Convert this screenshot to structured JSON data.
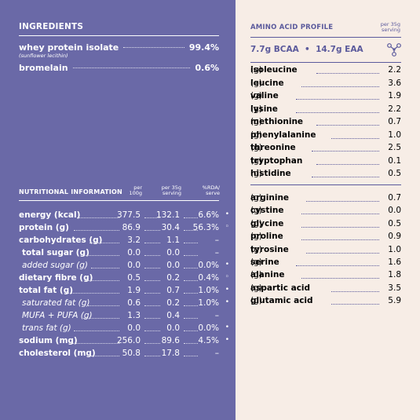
{
  "ingredients": {
    "title": "INGREDIENTS",
    "items": [
      {
        "name": "whey protein isolate",
        "value": "99.4%",
        "sub": "(sunflower lecithin)"
      },
      {
        "name": "bromelain",
        "value": "0.6%",
        "sub": ""
      }
    ]
  },
  "nutrition": {
    "title": "NUTRITIONAL INFORMATION",
    "col1": "per 100g",
    "col1_l1": "per",
    "col1_l2": "100g",
    "col2_l1": "per 35g",
    "col2_l2": "serving",
    "col3_l1": "%RDA/",
    "col3_l2": "serve",
    "rows": [
      {
        "label": "energy (kcal)",
        "per100": "377.5",
        "serving": "132.1",
        "rda": "6.6%",
        "mark": "•",
        "style": "b",
        "dotted": true
      },
      {
        "label": "protein (g)",
        "per100": "86.9",
        "serving": "30.4",
        "rda": "56.3%",
        "mark": "◦",
        "style": "b",
        "dotted": true
      },
      {
        "label": "carbohydrates (g)",
        "per100": "3.2",
        "serving": "1.1",
        "rda": "–",
        "mark": "",
        "style": "b",
        "dotted": true
      },
      {
        "label": "total sugar (g)",
        "per100": "0.0",
        "serving": "0.0",
        "rda": "–",
        "mark": "",
        "style": "b",
        "dotted": true
      },
      {
        "label": "added sugar (g)",
        "per100": "0.0",
        "serving": "0.0",
        "rda": "0.0%",
        "mark": "•",
        "style": "i",
        "dotted": true
      },
      {
        "label": "dietary fibre (g)",
        "per100": "0.5",
        "serving": "0.2",
        "rda": "0.4%",
        "mark": "◦",
        "style": "b",
        "dotted": true
      },
      {
        "label": "total fat (g)",
        "per100": "1.9",
        "serving": "0.7",
        "rda": "1.0%",
        "mark": "•",
        "style": "b",
        "dotted": true
      },
      {
        "label": "saturated fat (g)",
        "per100": "0.6",
        "serving": "0.2",
        "rda": "1.0%",
        "mark": "•",
        "style": "i",
        "dotted": true
      },
      {
        "label": "MUFA + PUFA (g)",
        "per100": "1.3",
        "serving": "0.4",
        "rda": "–",
        "mark": "",
        "style": "i",
        "dotted": true
      },
      {
        "label": "trans fat (g)",
        "per100": "0.0",
        "serving": "0.0",
        "rda": "0.0%",
        "mark": "•",
        "style": "i",
        "dotted": true
      },
      {
        "label": "sodium (mg)",
        "per100": "256.0",
        "serving": "89.6",
        "rda": "4.5%",
        "mark": "•",
        "style": "b",
        "dotted": true
      },
      {
        "label": "cholesterol (mg)",
        "per100": "50.8",
        "serving": "17.8",
        "rda": "–",
        "mark": "",
        "style": "b",
        "dotted": true
      }
    ]
  },
  "amino": {
    "title": "AMINO ACID PROFILE",
    "per_l1": "per 35g",
    "per_l2": "serving",
    "summary": "7.7g BCAA  •  14.7g EAA",
    "icon": "molecule-icon",
    "group1": [
      {
        "name": "isoleucine",
        "unit": "(g)",
        "value": "2.2"
      },
      {
        "name": "leucine",
        "unit": "(g)",
        "value": "3.6"
      },
      {
        "name": "valine",
        "unit": "(g)",
        "value": "1.9"
      },
      {
        "name": "lysine",
        "unit": "(g)",
        "value": "2.2"
      },
      {
        "name": "methionine",
        "unit": "(g)",
        "value": "0.7"
      },
      {
        "name": "phenylalanine",
        "unit": "(g)",
        "value": "1.0"
      },
      {
        "name": "threonine",
        "unit": "(g)",
        "value": "2.5"
      },
      {
        "name": "tryptophan",
        "unit": "(g)",
        "value": "0.1"
      },
      {
        "name": "histidine",
        "unit": "(g)",
        "value": "0.5"
      }
    ],
    "group2": [
      {
        "name": "arginine",
        "unit": "(g)",
        "value": "0.7"
      },
      {
        "name": "cystine",
        "unit": "(g)",
        "value": "0.0"
      },
      {
        "name": "glycine",
        "unit": "(g)",
        "value": "0.5"
      },
      {
        "name": "proline",
        "unit": "(g)",
        "value": "0.9"
      },
      {
        "name": "tyrosine",
        "unit": "(g)",
        "value": "1.0"
      },
      {
        "name": "serine",
        "unit": "(g)",
        "value": "1.6"
      },
      {
        "name": "alanine",
        "unit": "(g)",
        "value": "1.8"
      },
      {
        "name": "aspartic acid",
        "unit": "(g)",
        "value": "3.5"
      },
      {
        "name": "glutamic acid",
        "unit": "(g)",
        "value": "5.9"
      }
    ]
  },
  "colors": {
    "left_bg": "#6a69a7",
    "right_bg": "#f7ede6",
    "accent": "#5b5a9c"
  }
}
